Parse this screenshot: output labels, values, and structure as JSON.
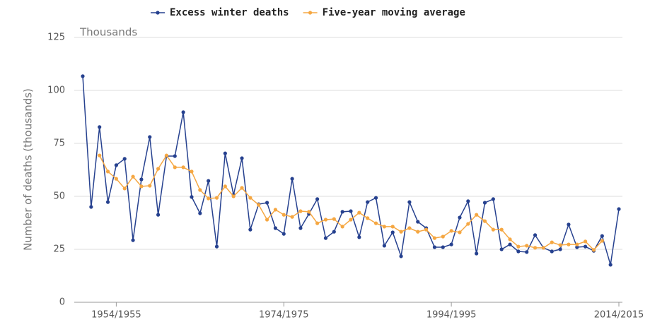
{
  "chart_data": {
    "type": "line",
    "y_axis_label": "Number of deaths (thousands)",
    "annotation": "Thousands",
    "categories": [
      null,
      null,
      null,
      null,
      "1954/1955",
      null,
      null,
      null,
      null,
      null,
      null,
      null,
      null,
      null,
      null,
      null,
      null,
      null,
      null,
      null,
      null,
      null,
      null,
      null,
      "1974/1975",
      null,
      null,
      null,
      null,
      null,
      null,
      null,
      null,
      null,
      null,
      null,
      null,
      null,
      null,
      null,
      null,
      null,
      null,
      null,
      "1994/1995",
      null,
      null,
      null,
      null,
      null,
      null,
      null,
      null,
      null,
      null,
      null,
      null,
      null,
      null,
      null,
      null,
      null,
      null,
      null,
      "2014/2015"
    ],
    "series": [
      {
        "name": "Excess winter deaths",
        "color": "#26418f",
        "values": [
          106.7,
          45,
          82.7,
          47.3,
          64.7,
          67.7,
          29.3,
          58,
          78,
          41.3,
          69,
          69,
          89.7,
          49.7,
          42,
          57.3,
          26.3,
          70.3,
          50.7,
          68,
          34.3,
          46.3,
          47,
          35,
          32.3,
          58.3,
          35,
          41.7,
          48.7,
          30.3,
          33.3,
          42.7,
          43,
          30.7,
          47.3,
          49.3,
          26.7,
          33,
          21.7,
          47.3,
          38,
          35,
          26,
          26,
          27.3,
          40,
          47.7,
          23,
          47,
          48.7,
          25,
          27.3,
          24,
          23.7,
          31.7,
          25.7,
          24,
          25,
          36.7,
          26,
          26.3,
          24.3,
          31.3,
          17.7,
          44
        ]
      },
      {
        "name": "Five-year moving average",
        "color": "#f5a742",
        "values": [
          null,
          null,
          69.3,
          61.7,
          58.3,
          53.7,
          59.3,
          54.7,
          55,
          63,
          69.3,
          63.7,
          63.7,
          61.7,
          53,
          49,
          49.3,
          54.7,
          50,
          54,
          49.3,
          46,
          39,
          43.7,
          41.3,
          40.3,
          43,
          42.7,
          37.3,
          39,
          39.3,
          35.7,
          39,
          42.3,
          39.7,
          37.3,
          35.7,
          35.7,
          33.3,
          35,
          33.3,
          34.3,
          30.3,
          31,
          33.7,
          33,
          37,
          41.3,
          38.3,
          34.3,
          34.3,
          29.7,
          26.3,
          26.7,
          25.7,
          25.7,
          28.3,
          27,
          27.3,
          27.3,
          28.7,
          24.7,
          29,
          null,
          null
        ]
      }
    ],
    "ylim": [
      0,
      125
    ],
    "yticks": [
      0,
      25,
      50,
      75,
      100,
      125
    ],
    "grid": true,
    "legend": "top"
  }
}
